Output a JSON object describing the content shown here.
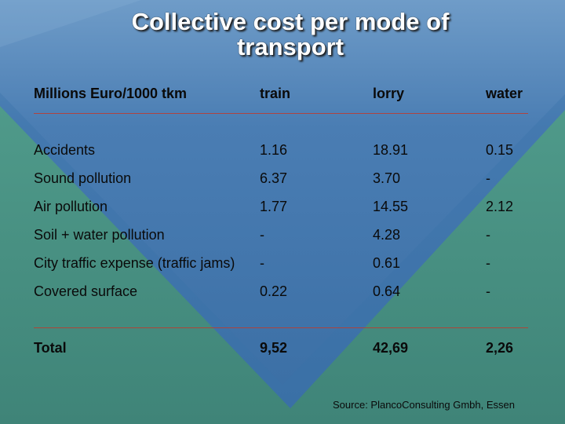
{
  "title_lines": [
    "Collective cost per mode of",
    "transport"
  ],
  "table": {
    "header": [
      "Millions Euro/1000 tkm",
      "train",
      "lorry",
      "water"
    ],
    "rows": [
      [
        "Accidents",
        "1.16",
        "18.91",
        "0.15"
      ],
      [
        "Sound pollution",
        "6.37",
        "3.70",
        "-"
      ],
      [
        "Air pollution",
        "1.77",
        "14.55",
        "2.12"
      ],
      [
        "Soil + water pollution",
        "-",
        "4.28",
        "-"
      ],
      [
        "City traffic expense (traffic jams)",
        "-",
        "0.61",
        "-"
      ],
      [
        "Covered surface",
        "0.22",
        "0.64",
        "-"
      ]
    ],
    "total": [
      "Total",
      "9,52",
      "42,69",
      "2,26"
    ]
  },
  "source": "Source: PlancoConsulting Gmbh, Essen",
  "colors": {
    "background_sky": "#3f73a6",
    "background_sea": "#4a8e82",
    "background_triangle": "#2f68a8",
    "rule_line": "#c0392b",
    "title_text": "#ffffff"
  }
}
